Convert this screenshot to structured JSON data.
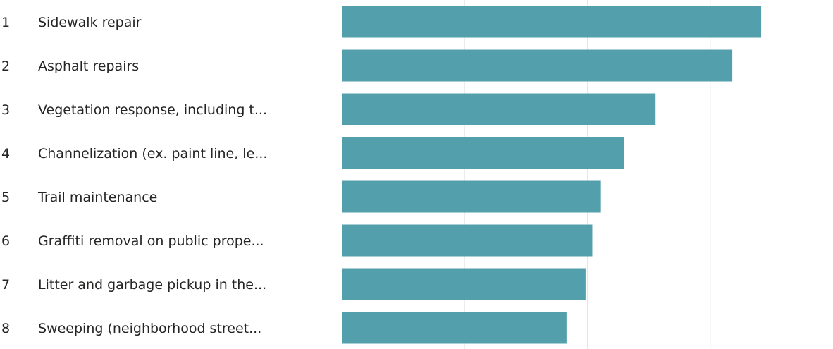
{
  "chart_data": {
    "type": "bar",
    "orientation": "horizontal",
    "ranks": [
      "1",
      "2",
      "3",
      "4",
      "5",
      "6",
      "7",
      "8"
    ],
    "categories": [
      "Sidewalk repair",
      "Asphalt repairs",
      "Vegetation response, including t...",
      "Channelization (ex. paint line, le...",
      "Trail maintenance",
      "Graffiti removal on public prope...",
      "Litter and garbage pickup in the...",
      "Sweeping (neighborhood street..."
    ],
    "values": [
      6.83,
      6.36,
      5.11,
      4.6,
      4.22,
      4.08,
      3.97,
      3.66
    ],
    "xlim": [
      0,
      8
    ],
    "grid": true,
    "bar_color": "#53a0ac",
    "grid_color": "#e6e6e6",
    "text_color": "#252423"
  }
}
